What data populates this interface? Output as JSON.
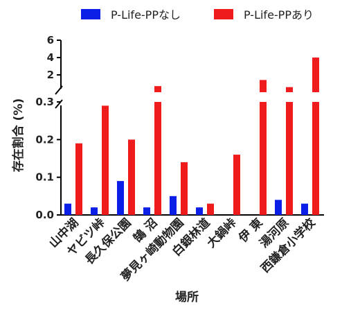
{
  "chart_data": {
    "type": "bar",
    "xlabel": "場所",
    "ylabel": "存在割合 (%)",
    "categories": [
      "山中湖",
      "ヤビツ峠",
      "長久保公園",
      "鵠 沼",
      "夢見ヶ崎動物園",
      "白銀林道",
      "大鍋峠",
      "伊 東",
      "湯河原",
      "西鎌倉小学校"
    ],
    "series": [
      {
        "name": "P-Life-PPなし",
        "color": "#0b1fe6",
        "values": [
          0.03,
          0.02,
          0.09,
          0.02,
          0.05,
          0.02,
          0,
          0,
          0.04,
          0.03
        ]
      },
      {
        "name": "P-Life-PPあり",
        "color": "#ee1c1c",
        "values": [
          0.19,
          0.29,
          0.2,
          0.9,
          0.14,
          0.03,
          0.16,
          1.5,
          0.8,
          4.0
        ]
      }
    ],
    "y_segments": [
      {
        "range": [
          0,
          0.3
        ],
        "ticks": [
          "0.0",
          "0.1",
          "0.2",
          "0.3"
        ],
        "tick_values": [
          0,
          0.1,
          0.2,
          0.3
        ]
      },
      {
        "range": [
          0.3,
          6
        ],
        "ticks": [
          "2",
          "4",
          "6"
        ],
        "tick_values": [
          2,
          4,
          6
        ]
      }
    ],
    "axis_break": true,
    "legend_position": "top"
  }
}
